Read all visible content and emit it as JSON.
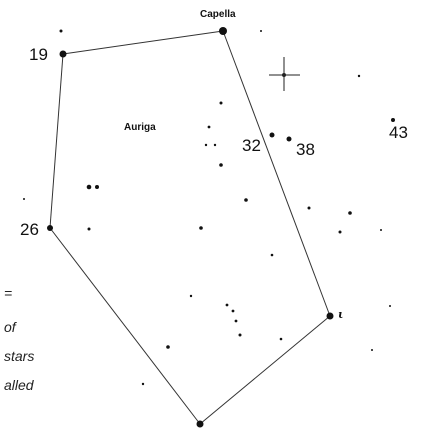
{
  "map": {
    "constellation_name": "Auriga",
    "star_labels": {
      "capella": "Capella",
      "star_19": "19",
      "star_26": "26",
      "star_32": "32",
      "star_38": "38",
      "star_43": "43",
      "iota": "ι"
    },
    "side_note_lines": [
      "=",
      "of",
      "stars",
      "alled"
    ],
    "crosshair_marker": "crosshair-marker-icon",
    "colors": {
      "ink": "#111111",
      "background": "#ffffff"
    }
  }
}
